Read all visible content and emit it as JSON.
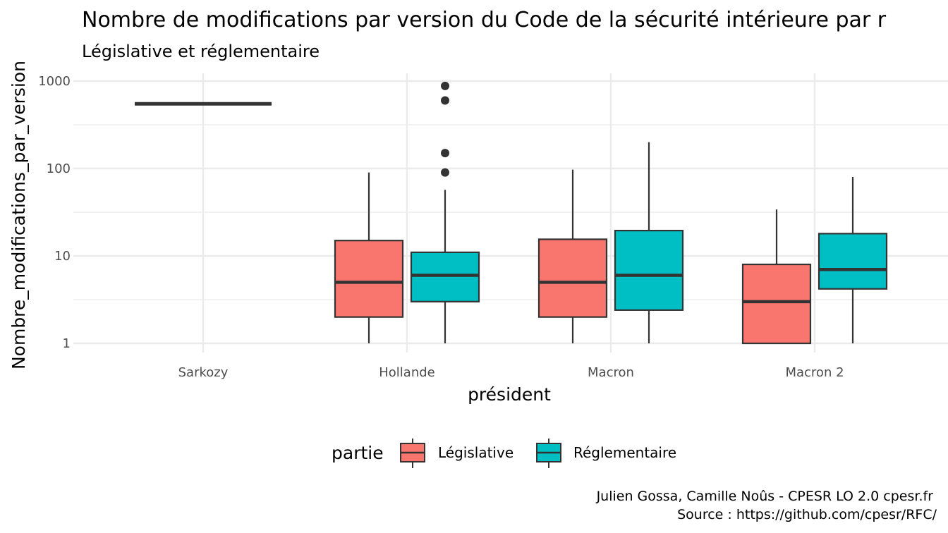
{
  "chart_data": {
    "type": "boxplot",
    "title": "Nombre de modifications par version du Code de la sécurité intérieure par r",
    "subtitle": "Législative et réglementaire",
    "xlabel": "président",
    "ylabel": "Nombre_modifications_par_version",
    "y_scale": "log10",
    "ylim": [
      1,
      1000
    ],
    "y_ticks": [
      {
        "value": 1,
        "label": "1"
      },
      {
        "value": 10,
        "label": "10"
      },
      {
        "value": 100,
        "label": "100"
      },
      {
        "value": 1000,
        "label": "1000"
      }
    ],
    "categories": [
      "Sarkozy",
      "Hollande",
      "Macron",
      "Macron 2"
    ],
    "legend": {
      "title": "partie",
      "position": "bottom"
    },
    "grid": true,
    "series": [
      {
        "name": "Législative",
        "color": "#F8766D",
        "boxes": [
          {
            "category": "Hollande",
            "min": 1,
            "q1": 2,
            "median": 5,
            "q3": 15,
            "max": 90,
            "outliers": []
          },
          {
            "category": "Macron",
            "min": 1,
            "q1": 2,
            "median": 5,
            "q3": 15.5,
            "max": 97,
            "outliers": []
          },
          {
            "category": "Macron 2",
            "min": 1,
            "q1": 1,
            "median": 3,
            "q3": 8,
            "max": 34,
            "outliers": []
          }
        ]
      },
      {
        "name": "Réglementaire",
        "color": "#00BFC4",
        "boxes": [
          {
            "category": "Hollande",
            "min": 1,
            "q1": 3,
            "median": 6,
            "q3": 11,
            "max": 57,
            "outliers": [
              90,
              150,
              600,
              880
            ]
          },
          {
            "category": "Macron",
            "min": 1,
            "q1": 2.4,
            "median": 6,
            "q3": 19.5,
            "max": 200,
            "outliers": []
          },
          {
            "category": "Macron 2",
            "min": 1,
            "q1": 4.2,
            "median": 7,
            "q3": 18,
            "max": 80,
            "outliers": []
          }
        ]
      }
    ],
    "single_value": {
      "category": "Sarkozy",
      "value": 550,
      "color": "#333333"
    },
    "caption": [
      "Julien Gossa, Camille Noûs - CPESR LO 2.0 cpesr.fr",
      "Source : https://github.com/cpesr/RFC/"
    ]
  }
}
